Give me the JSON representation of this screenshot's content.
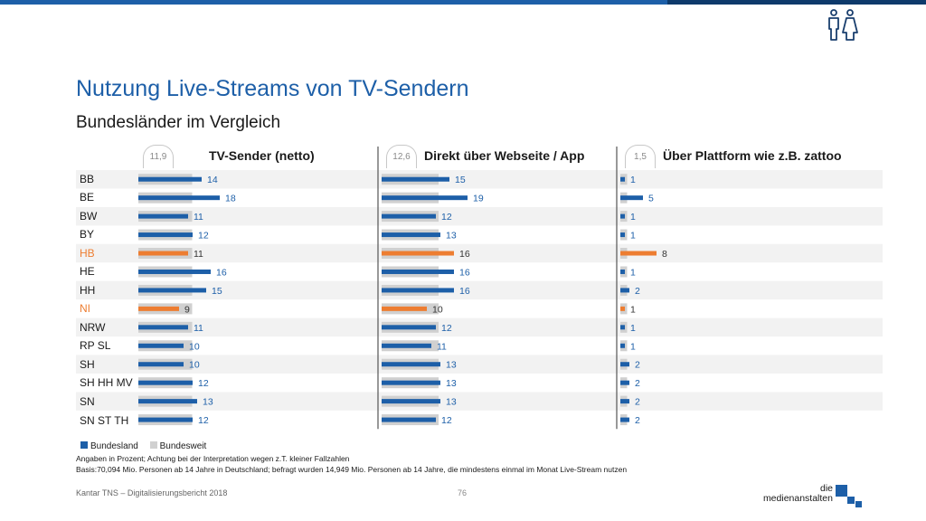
{
  "header": {
    "title": "Nutzung Live-Streams von TV-Sendern",
    "subtitle": "Bundesländer im Vergleich"
  },
  "colors": {
    "brand_blue": "#1d5fa8",
    "highlight_orange": "#ed7d31",
    "national_gray": "#d0d0d0",
    "row_stripe": "#f2f2f2"
  },
  "legend": {
    "state": "Bundesland",
    "national": "Bundesweit"
  },
  "notes": {
    "line1": "Angaben in Prozent; Achtung bei der Interpretation wegen z.T. kleiner Fallzahlen",
    "line2": "Basis:70,094 Mio. Personen ab 14 Jahre in Deutschland; befragt wurden 14,949 Mio. Personen ab 14 Jahre, die mindestens einmal im Monat Live-Stream nutzen"
  },
  "footer": {
    "source": "Kantar TNS – Digitalisierungsbericht 2018",
    "page": "76",
    "logo_line1": "die",
    "logo_line2": "medienanstalten"
  },
  "chart_data": {
    "type": "bar",
    "orientation": "horizontal",
    "categories": [
      "BB",
      "BE",
      "BW",
      "BY",
      "HB",
      "HE",
      "HH",
      "NI",
      "NRW",
      "RP SL",
      "SH",
      "SH HH MV",
      "SN",
      "SN ST TH"
    ],
    "highlighted_categories": [
      "HB",
      "NI"
    ],
    "panels": [
      {
        "title": "TV-Sender (netto)",
        "national_value": 11.9,
        "national_label": "11,9",
        "values": [
          14,
          18,
          11,
          12,
          11,
          16,
          15,
          9,
          11,
          10,
          10,
          12,
          13,
          12
        ]
      },
      {
        "title": "Direkt über Webseite / App",
        "national_value": 12.6,
        "national_label": "12,6",
        "values": [
          15,
          19,
          12,
          13,
          16,
          16,
          16,
          10,
          12,
          11,
          13,
          13,
          13,
          12
        ]
      },
      {
        "title": "Über Plattform wie z.B. zattoo",
        "national_value": 1.5,
        "national_label": "1,5",
        "values": [
          1,
          5,
          1,
          1,
          8,
          1,
          2,
          1,
          1,
          1,
          2,
          2,
          2,
          2
        ]
      }
    ],
    "series": [
      {
        "name": "Bundesland"
      },
      {
        "name": "Bundesweit"
      }
    ]
  }
}
